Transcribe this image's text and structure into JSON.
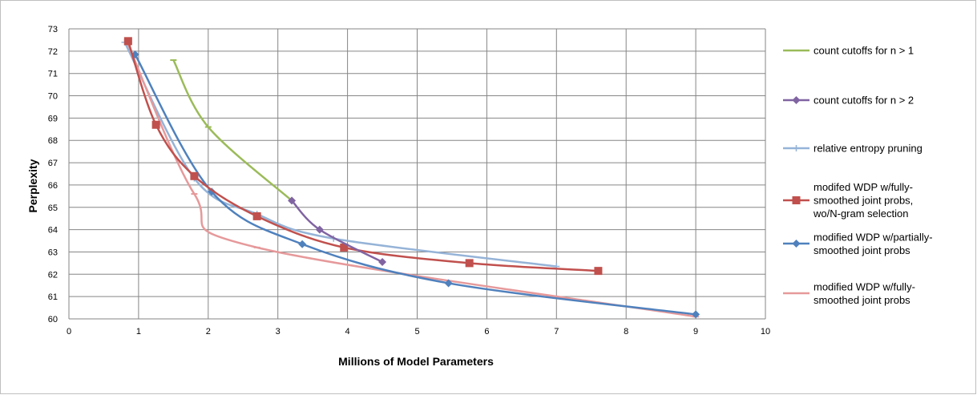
{
  "chart_data": {
    "type": "line",
    "xlabel": "Millions of Model Parameters",
    "ylabel": "Perplexity",
    "xlim": [
      0,
      10
    ],
    "ylim": [
      60,
      73
    ],
    "xticks": [
      0,
      1,
      2,
      3,
      4,
      5,
      6,
      7,
      8,
      9,
      10
    ],
    "yticks": [
      60,
      61,
      62,
      63,
      64,
      65,
      66,
      67,
      68,
      69,
      70,
      71,
      72,
      73
    ],
    "grid": "major",
    "legend_position": "right",
    "series": [
      {
        "name": "count cutoffs for n > 1",
        "color": "#9bbb59",
        "marker": "dash",
        "points": [
          [
            1.5,
            71.6
          ],
          [
            2.0,
            68.6
          ],
          [
            3.2,
            65.3
          ]
        ]
      },
      {
        "name": "count cutoffs for n > 2",
        "color": "#8064a2",
        "marker": "diamond",
        "points": [
          [
            3.2,
            65.3
          ],
          [
            3.6,
            64.0
          ],
          [
            4.5,
            62.55
          ]
        ]
      },
      {
        "name": "relative entropy pruning",
        "color": "#95b3d7",
        "marker": "plus",
        "points": [
          [
            0.8,
            72.4
          ],
          [
            1.8,
            66.3
          ],
          [
            2.7,
            64.7
          ],
          [
            3.8,
            63.6
          ],
          [
            7.0,
            62.35
          ]
        ]
      },
      {
        "name": "modifed WDP w/fully-smoothed joint probs, wo/N-gram selection",
        "label_lines": [
          "modifed WDP w/fully-",
          "smoothed joint probs,",
          "wo/N-gram selection"
        ],
        "color": "#c0504d",
        "marker": "square",
        "points": [
          [
            0.85,
            72.45
          ],
          [
            1.25,
            68.7
          ],
          [
            1.8,
            66.4
          ],
          [
            2.7,
            64.6
          ],
          [
            3.95,
            63.2
          ],
          [
            5.75,
            62.5
          ],
          [
            7.6,
            62.15
          ]
        ]
      },
      {
        "name": "modified WDP w/partially-smoothed joint probs",
        "label_lines": [
          "modified WDP w/partially-",
          "smoothed joint probs"
        ],
        "color": "#4f81bd",
        "marker": "diamond",
        "points": [
          [
            0.95,
            71.85
          ],
          [
            2.05,
            65.7
          ],
          [
            3.35,
            63.35
          ],
          [
            5.45,
            61.6
          ],
          [
            9.0,
            60.2
          ]
        ]
      },
      {
        "name": "modified WDP w/fully-smoothed joint probs",
        "label_lines": [
          "modified WDP w/fully-",
          "smoothed joint probs"
        ],
        "color": "#e6999a",
        "marker": "dash",
        "points": [
          [
            0.85,
            72.3
          ],
          [
            1.8,
            65.6
          ],
          [
            2.7,
            63.2
          ],
          [
            9.0,
            60.1
          ]
        ]
      }
    ]
  }
}
